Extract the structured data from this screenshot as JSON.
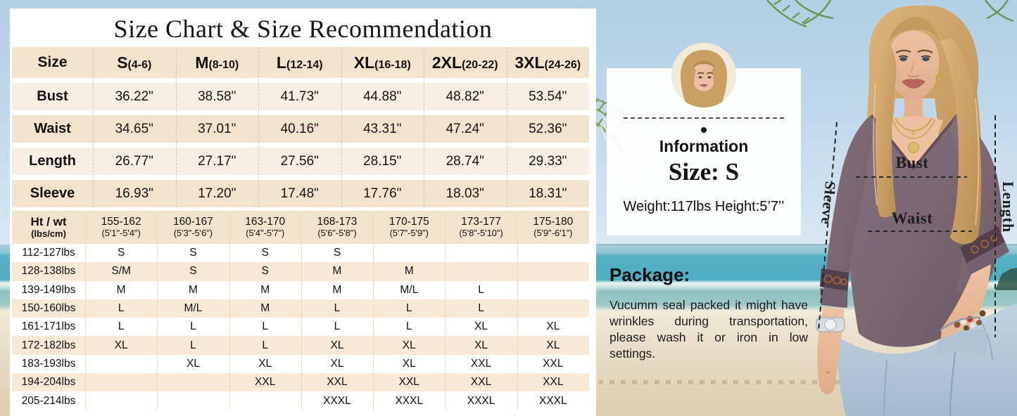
{
  "title": "Size Chart & Size Recommendation",
  "size_table": {
    "corner_label": "Size",
    "columns": [
      {
        "size": "S",
        "range": "(4-6)"
      },
      {
        "size": "M",
        "range": "(8-10)"
      },
      {
        "size": "L",
        "range": "(12-14)"
      },
      {
        "size": "XL",
        "range": "(16-18)"
      },
      {
        "size": "2XL",
        "range": "(20-22)"
      },
      {
        "size": "3XL",
        "range": "(24-26)"
      }
    ],
    "rows": [
      {
        "label": "Bust",
        "values": [
          "36.22\"",
          "38.58\"",
          "41.73\"",
          "44.88\"",
          "48.82\"",
          "53.54\""
        ]
      },
      {
        "label": "Waist",
        "values": [
          "34.65\"",
          "37.01\"",
          "40.16\"",
          "43.31\"",
          "47.24\"",
          "52.36\""
        ]
      },
      {
        "label": "Length",
        "values": [
          "26.77\"",
          "27.17\"",
          "27.56\"",
          "28.15\"",
          "28.74\"",
          "29.33\""
        ]
      },
      {
        "label": "Sleeve",
        "values": [
          "16.93\"",
          "17.20\"",
          "17.48\"",
          "17.76\"",
          "18.03\"",
          "18.31\""
        ]
      }
    ]
  },
  "fit_table": {
    "corner_label": "Ht / wt",
    "corner_sublabel": "(lbs/cm)",
    "columns": [
      {
        "range": "155-162",
        "height": "(5'1\"-5'4\")"
      },
      {
        "range": "160-167",
        "height": "(5'3\"-5'6\")"
      },
      {
        "range": "163-170",
        "height": "(5'4\"-5'7\")"
      },
      {
        "range": "168-173",
        "height": "(5'6\"-5'8\")"
      },
      {
        "range": "170-175",
        "height": "(5'7\"-5'9\")"
      },
      {
        "range": "173-177",
        "height": "(5'8\"-5'10\")"
      },
      {
        "range": "175-180",
        "height": "(5'9\"-6'1\")"
      }
    ],
    "rows": [
      {
        "label": "112-127lbs",
        "values": [
          "S",
          "S",
          "S",
          "S",
          "",
          "",
          ""
        ]
      },
      {
        "label": "128-138lbs",
        "values": [
          "S/M",
          "S",
          "S",
          "M",
          "M",
          "",
          ""
        ]
      },
      {
        "label": "139-149lbs",
        "values": [
          "M",
          "M",
          "M",
          "M",
          "M/L",
          "L",
          ""
        ]
      },
      {
        "label": "150-160lbs",
        "values": [
          "L",
          "M/L",
          "M",
          "L",
          "L",
          "L",
          ""
        ]
      },
      {
        "label": "161-171lbs",
        "values": [
          "L",
          "L",
          "L",
          "L",
          "L",
          "XL",
          "XL"
        ]
      },
      {
        "label": "172-182lbs",
        "values": [
          "XL",
          "L",
          "L",
          "XL",
          "XL",
          "XL",
          "XL"
        ]
      },
      {
        "label": "183-193lbs",
        "values": [
          "",
          "XL",
          "XL",
          "XL",
          "XL",
          "XXL",
          "XXL"
        ]
      },
      {
        "label": "194-204lbs",
        "values": [
          "",
          "",
          "XXL",
          "XXL",
          "XXL",
          "XXL",
          "XXL"
        ]
      },
      {
        "label": "205-214lbs",
        "values": [
          "",
          "",
          "",
          "XXXL",
          "XXXL",
          "XXXL",
          "XXXL"
        ]
      }
    ]
  },
  "info_card": {
    "avatar": "model-face-photo",
    "title": "Information",
    "size_line": "Size: S",
    "detail_line": "Weight:117lbs Height:5’7’’"
  },
  "package": {
    "heading": "Package:",
    "text": "Vucumm seal packed it might have wrinkles during transportation, please wash it or iron in low settings."
  },
  "model_annotations": {
    "bust": "Bust",
    "waist": "Waist",
    "sleeve": "Sleeve",
    "length": "Length"
  },
  "colors": {
    "table_header_beige": "#f4e3cc",
    "table_row_light": "#f9eee3",
    "fit_row_beige": "#f7e9d6",
    "card_white": "#ffffff",
    "sky_blue": "#bcd6ea",
    "ocean_teal": "#4fadc2",
    "sand": "#e7dcc6",
    "shirt_mauve": "#7b6570",
    "annotation_dark": "#262626"
  }
}
